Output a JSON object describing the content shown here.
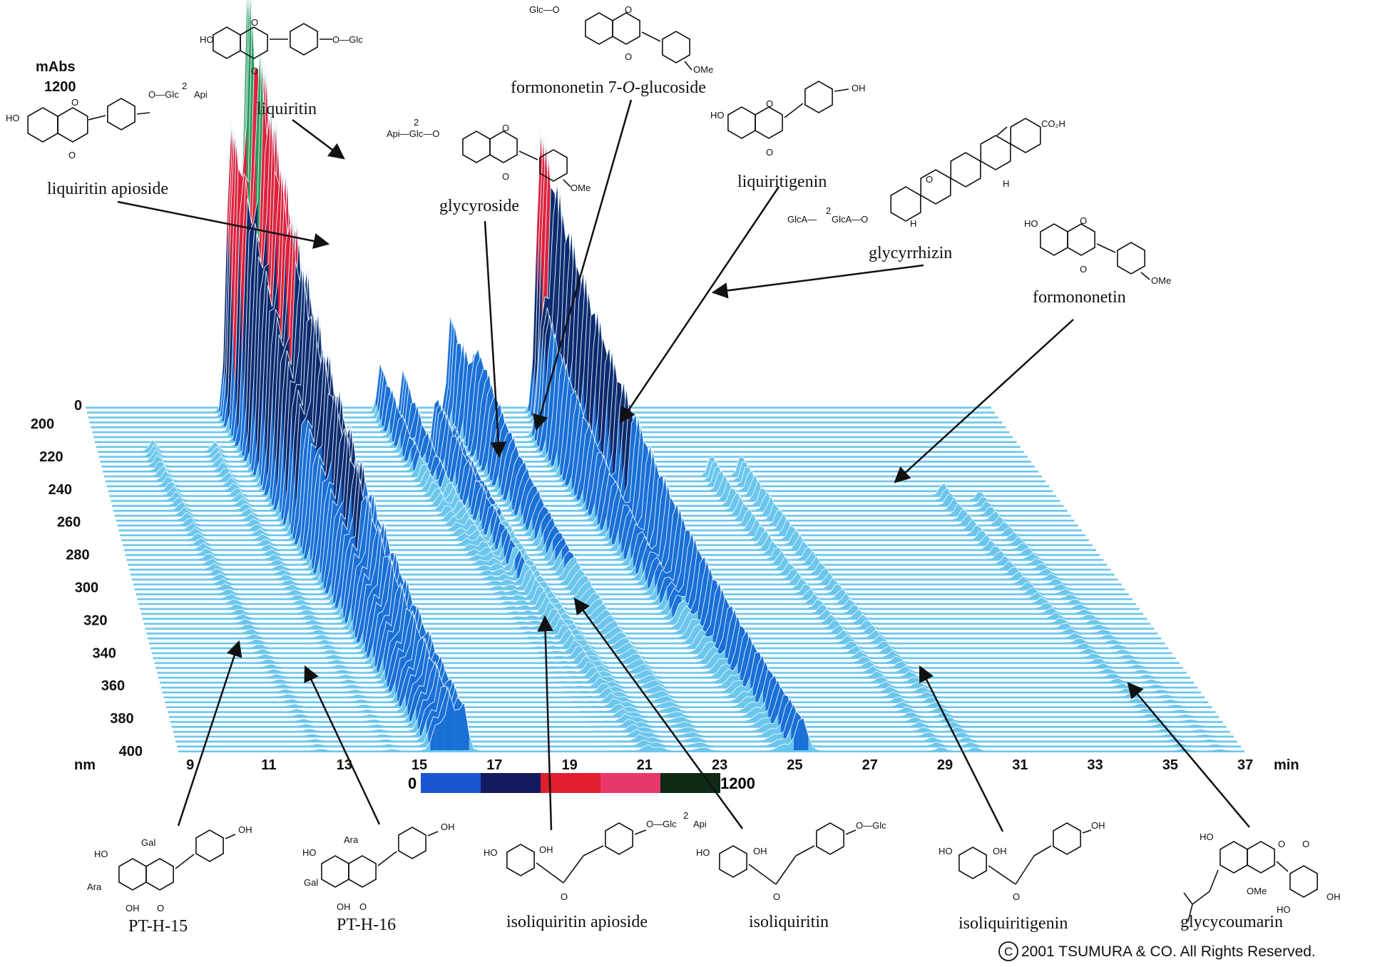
{
  "colors": {
    "surface": "#6cc6ec",
    "ridge_line": "#eaf7fd",
    "low": "#1a6fd6",
    "mid": "#0e2a6e",
    "high": "#e0203a",
    "top": "#2e9a5a",
    "text": "#111111",
    "arrow": "#111111"
  },
  "chart_data": {
    "type": "3d-chromatogram",
    "y_unit_label": "mAbs",
    "y_top": "1200",
    "z_zero": "0",
    "wavelength_unit": "nm",
    "time_unit": "min",
    "x_ticks": [
      "9",
      "11",
      "13",
      "15",
      "17",
      "19",
      "21",
      "23",
      "25",
      "27",
      "29",
      "31",
      "33",
      "35",
      "37"
    ],
    "wavelength_ticks": [
      "200",
      "220",
      "240",
      "260",
      "280",
      "300",
      "320",
      "340",
      "360",
      "380",
      "400"
    ],
    "time_range": [
      8.6,
      37
    ],
    "wavelength_range": [
      190,
      400
    ],
    "absorbance_range": [
      0,
      1200
    ],
    "colorscale": {
      "min": "0",
      "max": "1200",
      "colors": [
        "#1a56d0",
        "#141a5e",
        "#e01e2e",
        "#e8386a",
        "#0e2a14"
      ]
    },
    "peaks": [
      {
        "t": 13.1,
        "wl": 200,
        "h": 790,
        "w": 0.18,
        "decay": 85
      },
      {
        "t": 13.5,
        "wl": 205,
        "h": 1180,
        "w": 0.16,
        "decay": 95
      },
      {
        "t": 13.9,
        "wl": 210,
        "h": 1000,
        "w": 0.16,
        "decay": 95
      },
      {
        "t": 22.8,
        "wl": 200,
        "h": 760,
        "w": 0.2,
        "decay": 95
      },
      {
        "t": 22.5,
        "wl": 215,
        "h": 360,
        "w": 0.2,
        "decay": 60
      },
      {
        "t": 20.0,
        "wl": 200,
        "h": 280,
        "w": 0.15,
        "decay": 45
      },
      {
        "t": 20.4,
        "wl": 215,
        "h": 240,
        "w": 0.15,
        "decay": 55
      },
      {
        "t": 17.8,
        "wl": 200,
        "h": 140,
        "w": 0.14,
        "decay": 35
      },
      {
        "t": 18.3,
        "wl": 210,
        "h": 160,
        "w": 0.14,
        "decay": 35
      },
      {
        "t": 19.0,
        "wl": 225,
        "h": 160,
        "w": 0.15,
        "decay": 75
      },
      {
        "t": 19.4,
        "wl": 230,
        "h": 100,
        "w": 0.15,
        "decay": 70
      },
      {
        "t": 27.0,
        "wl": 240,
        "h": 60,
        "w": 0.14,
        "decay": 85
      },
      {
        "t": 27.9,
        "wl": 240,
        "h": 60,
        "w": 0.14,
        "decay": 85
      },
      {
        "t": 10.3,
        "wl": 225,
        "h": 30,
        "w": 0.14,
        "decay": 90
      },
      {
        "t": 12.2,
        "wl": 225,
        "h": 25,
        "w": 0.14,
        "decay": 90
      },
      {
        "t": 33.6,
        "wl": 250,
        "h": 35,
        "w": 0.14,
        "decay": 80
      },
      {
        "t": 34.6,
        "wl": 255,
        "h": 25,
        "w": 0.14,
        "decay": 70
      }
    ],
    "compounds": [
      {
        "name": "liquiritin apioside",
        "t": 13.1
      },
      {
        "name": "liquiritin",
        "t": 13.5
      },
      {
        "name": "glycyroside",
        "t": 17.8
      },
      {
        "name": "formononetin 7-O-glucoside",
        "t": 18.6
      },
      {
        "name": "liquiritigenin",
        "t": 20.2
      },
      {
        "name": "glycyrrhizin",
        "t": 22.8
      },
      {
        "name": "formononetin",
        "t": 27.9
      },
      {
        "name": "PT-H-15",
        "t": 10.3
      },
      {
        "name": "PT-H-16",
        "t": 12.0
      },
      {
        "name": "isoliquiritin apioside",
        "t": 18.6
      },
      {
        "name": "isoliquiritin",
        "t": 19.2
      },
      {
        "name": "isoliquiritigenin",
        "t": 28.6
      },
      {
        "name": "glycycoumarin",
        "t": 34.1
      }
    ]
  },
  "labels": {
    "liquiritin_apioside": "liquiritin apioside",
    "liquiritin": "liquiritin",
    "formononetin_7_glc_pre": "formononetin 7-",
    "formononetin_7_glc_o": "O",
    "formononetin_7_glc_post": "-glucoside",
    "glycyroside": "glycyroside",
    "liquiritigenin": "liquiritigenin",
    "glycyrrhizin": "glycyrrhizin",
    "formononetin": "formononetin",
    "pth15": "PT-H-15",
    "pth16": "PT-H-16",
    "isoliquiritin_apioside": "isoliquiritin apioside",
    "isoliquiritin": "isoliquiritin",
    "isoliquiritigenin": "isoliquiritigenin",
    "glycycoumarin": "glycycoumarin"
  },
  "structure_text": {
    "ho": "HO",
    "oh": "OH",
    "o": "O",
    "ome": "OMe",
    "o_glc": "O—Glc",
    "o_glc_api": "O—Glc",
    "api": "Api",
    "two": "2",
    "glc_o": "Glc—O",
    "api_glc_o": "Api—Glc—O",
    "co2h": "CO₂H",
    "glca": "GlcA—",
    "glca2": "GlcA—O",
    "h": "H",
    "gal": "Gal",
    "ara": "Ara"
  },
  "copyright": {
    "symbol": "C",
    "text": "2001 TSUMURA & CO. All Rights Reserved."
  }
}
